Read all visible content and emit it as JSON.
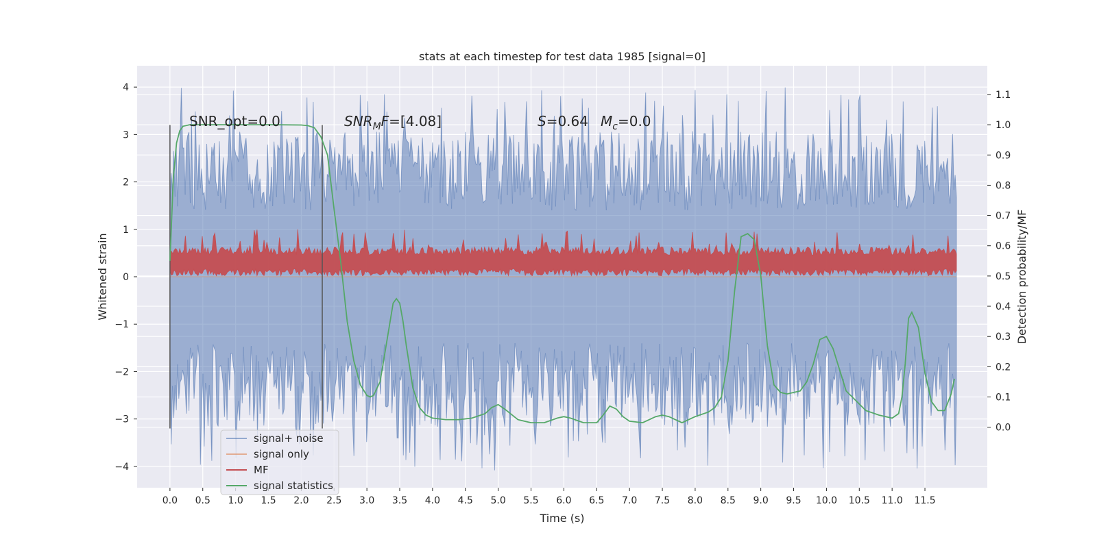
{
  "chart_data": {
    "type": "line",
    "title": "stats at each timestep for test data 1985 [signal=0]",
    "xlabel": "Time (s)",
    "ylabel": "Whitened strain",
    "y2label": "Detection probability/MF",
    "xlim": [
      -0.5,
      12.45
    ],
    "ylim": [
      -4.45,
      4.45
    ],
    "y2lim": [
      -0.2,
      1.195
    ],
    "grid": true,
    "legend_position": "lower-left",
    "x_ticks": [
      "0.0",
      "0.5",
      "1.0",
      "1.5",
      "2.0",
      "2.5",
      "3.0",
      "3.5",
      "4.0",
      "4.5",
      "5.0",
      "5.5",
      "6.0",
      "6.5",
      "7.0",
      "7.5",
      "8.0",
      "8.5",
      "9.0",
      "9.5",
      "10.0",
      "10.5",
      "11.0",
      "11.5"
    ],
    "y_ticks": [
      "4",
      "3",
      "2",
      "1",
      "0",
      "−1",
      "−2",
      "−3",
      "−4"
    ],
    "y2_ticks": [
      "1.1",
      "1.0",
      "0.9",
      "0.8",
      "0.7",
      "0.6",
      "0.5",
      "0.4",
      "0.3",
      "0.2",
      "0.1",
      "0.0"
    ],
    "annotations": {
      "snr_opt": "SNR_opt=0.0",
      "snr_mf_pre": "SNR",
      "snr_mf_sub": "M",
      "snr_mf_post": "F=[4.08]",
      "s_var": "S",
      "s_val": "=0.64",
      "mc_var": "M",
      "mc_sub": "c",
      "mc_val": "=0.0"
    },
    "vlines_x": [
      0.0,
      2.32
    ],
    "noise_envelope": {
      "t_range": [
        0.0,
        11.98
      ],
      "y_range": [
        -3.6,
        3.6
      ],
      "peak_max": 4.0,
      "peak_min": -4.1
    },
    "mf_envelope": {
      "t_range": [
        0.0,
        11.98
      ],
      "y_range": [
        0.0,
        1.0
      ]
    },
    "series": [
      {
        "name": "signal+ noise",
        "color": "#4c72b0",
        "values_desc": "noise"
      },
      {
        "name": "signal only",
        "color": "#dd8452",
        "values_desc": "flat"
      },
      {
        "name": "MF",
        "color": "#c44e52",
        "values_desc": "mf"
      },
      {
        "name": "signal statistics",
        "color": "#55a868",
        "x": [
          0.0,
          0.05,
          0.1,
          0.15,
          0.2,
          0.3,
          0.5,
          0.8,
          1.2,
          1.6,
          2.0,
          2.1,
          2.2,
          2.3,
          2.4,
          2.5,
          2.6,
          2.7,
          2.8,
          2.9,
          3.0,
          3.05,
          3.1,
          3.2,
          3.3,
          3.4,
          3.45,
          3.5,
          3.55,
          3.6,
          3.7,
          3.8,
          3.9,
          4.0,
          4.2,
          4.4,
          4.6,
          4.8,
          4.9,
          5.0,
          5.1,
          5.3,
          5.5,
          5.7,
          5.9,
          6.0,
          6.1,
          6.3,
          6.5,
          6.6,
          6.7,
          6.8,
          6.9,
          7.0,
          7.2,
          7.4,
          7.5,
          7.6,
          7.8,
          8.0,
          8.2,
          8.3,
          8.4,
          8.5,
          8.6,
          8.7,
          8.8,
          8.9,
          9.0,
          9.1,
          9.2,
          9.3,
          9.4,
          9.6,
          9.7,
          9.8,
          9.9,
          10.0,
          10.1,
          10.3,
          10.6,
          10.8,
          11.0,
          11.1,
          11.15,
          11.2,
          11.25,
          11.3,
          11.4,
          11.5,
          11.6,
          11.7,
          11.8,
          11.9,
          11.95
        ],
        "values": [
          0.55,
          0.82,
          0.94,
          0.98,
          0.995,
          1.0,
          1.0,
          1.0,
          1.0,
          1.0,
          0.999,
          0.997,
          0.99,
          0.96,
          0.9,
          0.72,
          0.55,
          0.35,
          0.22,
          0.14,
          0.105,
          0.1,
          0.105,
          0.15,
          0.28,
          0.41,
          0.425,
          0.41,
          0.35,
          0.27,
          0.13,
          0.065,
          0.04,
          0.03,
          0.025,
          0.025,
          0.03,
          0.045,
          0.065,
          0.075,
          0.06,
          0.025,
          0.015,
          0.015,
          0.03,
          0.035,
          0.03,
          0.015,
          0.015,
          0.04,
          0.07,
          0.06,
          0.035,
          0.02,
          0.015,
          0.035,
          0.04,
          0.035,
          0.015,
          0.035,
          0.05,
          0.065,
          0.1,
          0.22,
          0.45,
          0.63,
          0.64,
          0.62,
          0.5,
          0.27,
          0.14,
          0.115,
          0.11,
          0.12,
          0.15,
          0.21,
          0.29,
          0.3,
          0.26,
          0.12,
          0.055,
          0.04,
          0.03,
          0.045,
          0.1,
          0.21,
          0.36,
          0.38,
          0.33,
          0.18,
          0.085,
          0.055,
          0.055,
          0.11,
          0.16
        ]
      }
    ]
  }
}
